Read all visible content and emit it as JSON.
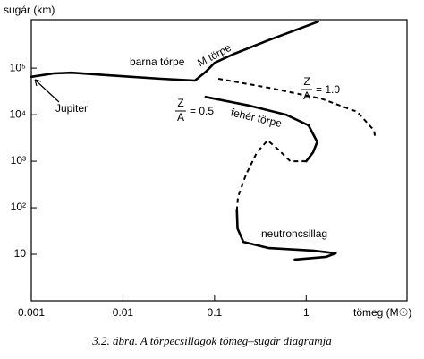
{
  "chart_data": {
    "type": "line",
    "y_label": "sugár (km)",
    "x_label": "tömeg (M☉)",
    "caption": "3.2. ábra. A törpecsillagok tömeg–sugár diagramja",
    "xscale": "log",
    "yscale": "log",
    "xlim": [
      0.001,
      12.6
    ],
    "ylim": [
      1,
      1100000
    ],
    "xticks": [
      0.001,
      0.01,
      0.1,
      1
    ],
    "yticks": [
      10,
      {
        "value": 100,
        "label": "10²"
      },
      {
        "value": 1000,
        "label": "10³"
      },
      {
        "value": 10000,
        "label": "10⁴"
      },
      {
        "value": 100000,
        "label": "10⁵"
      }
    ],
    "series": [
      {
        "color": "#000000",
        "dash": false,
        "x": [
          0.001,
          0.00175,
          0.00275,
          0.01,
          0.026,
          0.061,
          0.08,
          0.1,
          0.16,
          0.39,
          1.35
        ],
        "values": [
          65000,
          77000,
          80000,
          67000,
          59000,
          54000,
          83000,
          130000,
          200000,
          400000,
          1000000
        ]
      },
      {
        "color": "#000000",
        "dash": false,
        "x": [
          0.08,
          0.245,
          0.6,
          1.06,
          1.32,
          1.19,
          1.0
        ],
        "values": [
          24000,
          15500,
          10000,
          5900,
          2600,
          1550,
          1000
        ]
      },
      {
        "color": "#000000",
        "dash": true,
        "x": [
          1.0,
          0.67,
          0.48,
          0.38,
          0.29,
          0.22,
          0.18,
          0.175
        ],
        "values": [
          1000,
          1000,
          1900,
          2800,
          1550,
          510,
          170,
          87
        ]
      },
      {
        "color": "#000000",
        "dash": false,
        "x": [
          0.175,
          0.178,
          0.206,
          0.39,
          1.19,
          2.1,
          1.66,
          0.75
        ],
        "values": [
          87,
          36,
          18.5,
          13.6,
          12,
          10.5,
          8.8,
          7.7
        ]
      },
      {
        "color": "#000000",
        "dash": true,
        "x": [
          0.11,
          0.39,
          1.47,
          3.6,
          5.5,
          5.7
        ],
        "values": [
          59000,
          38000,
          22000,
          11500,
          4600,
          3000
        ]
      }
    ],
    "annotations": [
      "barna törpe",
      "M törpe",
      "Jupiter",
      "fehér törpe",
      "neutroncsillag"
    ],
    "fractions": [
      {
        "numerator": "Z",
        "denominator": "A",
        "text": "= 0.5"
      },
      {
        "numerator": "Z",
        "denominator": "A",
        "text": "= 1.0"
      }
    ]
  }
}
